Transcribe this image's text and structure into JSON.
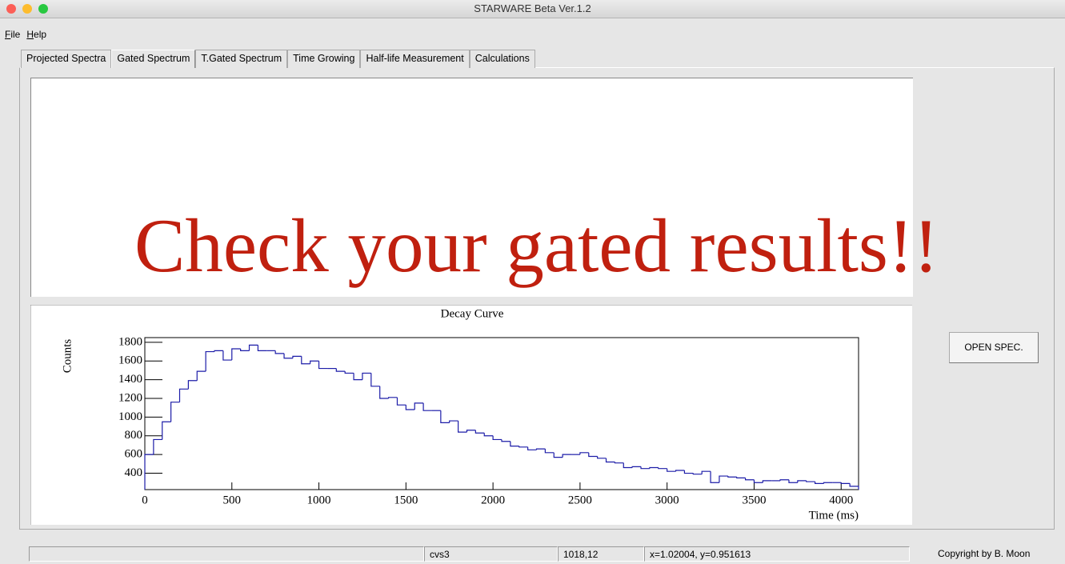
{
  "window": {
    "title": "STARWARE Beta Ver.1.2"
  },
  "menu": [
    "File",
    "Help"
  ],
  "tabs": [
    "Projected Spectra",
    "Gated Spectrum",
    "T.Gated Spectrum",
    "Time Growing",
    "Half-life Measurement",
    "Calculations"
  ],
  "overlay_text": "Check your gated results!!",
  "button": "OPEN SPEC.",
  "status_bar": [
    "cvs3",
    "1018,12",
    "x=1.02004, y=0.951613"
  ],
  "copyright": "Copyright by B. Moon",
  "chart_data": {
    "type": "histogram",
    "title": "Decay Curve",
    "x_label": "Time (ms)",
    "y_label": "Counts",
    "color": "#1c1ca8",
    "bins": [
      0,
      50,
      100,
      150,
      200,
      250,
      300,
      350,
      400,
      450,
      500,
      550,
      600,
      650,
      700,
      750,
      800,
      850,
      900,
      950,
      1000,
      1050,
      1100,
      1150,
      1200,
      1250,
      1300,
      1350,
      1400,
      1450,
      1500,
      1550,
      1600,
      1650,
      1700,
      1750,
      1800,
      1850,
      1900,
      1950,
      2000,
      2050,
      2100,
      2150,
      2200,
      2250,
      2300,
      2350,
      2400,
      2450,
      2500,
      2550,
      2600,
      2650,
      2700,
      2750,
      2800,
      2850,
      2900,
      2950,
      3000,
      3050,
      3100,
      3150,
      3200,
      3250,
      3300,
      3350,
      3400,
      3450,
      3500,
      3550,
      3600,
      3650,
      3700,
      3750,
      3800,
      3850,
      3900,
      3950,
      4000,
      4050,
      4100
    ],
    "counts": [
      600,
      760,
      950,
      1160,
      1300,
      1390,
      1490,
      1700,
      1710,
      1610,
      1730,
      1710,
      1770,
      1710,
      1710,
      1680,
      1630,
      1650,
      1570,
      1600,
      1520,
      1520,
      1490,
      1470,
      1400,
      1470,
      1330,
      1200,
      1210,
      1130,
      1080,
      1150,
      1070,
      1070,
      940,
      960,
      840,
      860,
      830,
      800,
      760,
      740,
      690,
      680,
      650,
      660,
      620,
      570,
      600,
      600,
      620,
      580,
      560,
      520,
      510,
      460,
      470,
      450,
      460,
      450,
      420,
      430,
      400,
      390,
      420,
      300,
      370,
      360,
      350,
      330,
      300,
      320,
      320,
      330,
      300,
      320,
      310,
      290,
      300,
      300,
      290,
      260
    ],
    "xlim": [
      0,
      4100
    ],
    "ylim": [
      225,
      1850
    ],
    "xticks": [
      0,
      500,
      1000,
      1500,
      2000,
      2500,
      3000,
      3500,
      4000
    ],
    "yticks": [
      400,
      600,
      800,
      1000,
      1200,
      1400,
      1600,
      1800
    ]
  }
}
